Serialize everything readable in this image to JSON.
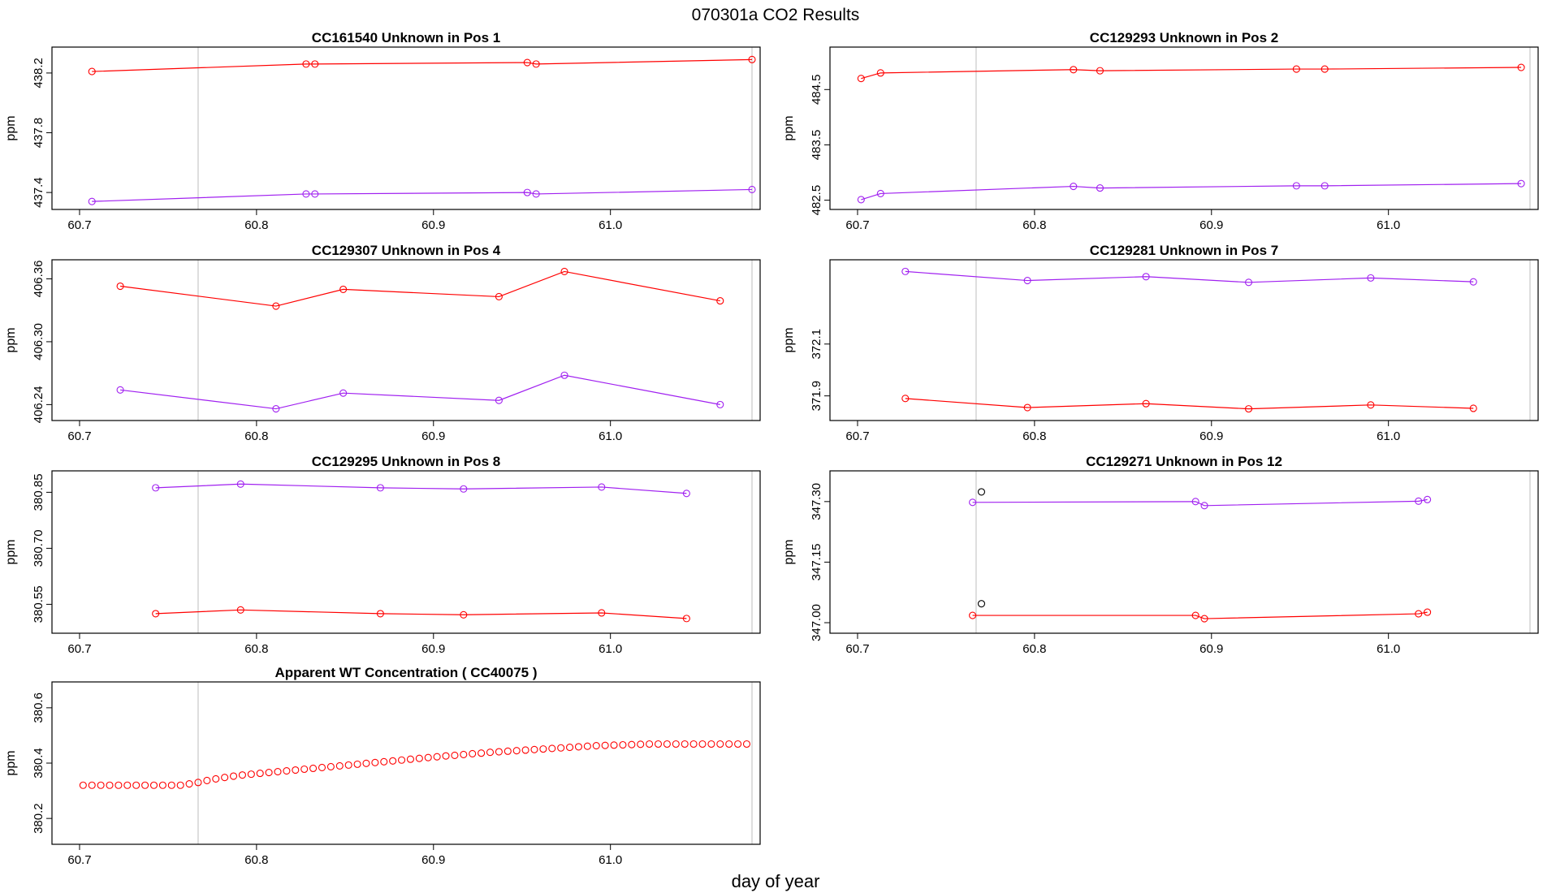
{
  "title": "070301a  CO2 Results",
  "xlabel": "day of year",
  "colors": {
    "red": "#ff0000",
    "purple": "#a020f0",
    "black": "#000000",
    "vline": "#bebebe"
  },
  "chart_data": [
    {
      "type": "line",
      "title": "CC161540    Unknown in Pos 1",
      "ylabel": "ppm",
      "xlim": [
        60.689,
        61.08
      ],
      "ylim": [
        437.33,
        438.33
      ],
      "xticks": [
        "60.7",
        "60.8",
        "60.9",
        "61.0"
      ],
      "yticks": [
        "437.4",
        "437.8",
        "438.2"
      ],
      "vlines": [
        60.767,
        61.08
      ],
      "series": [
        {
          "name": "red",
          "color": "#ff0000",
          "x": [
            60.707,
            60.828,
            60.833,
            60.953,
            60.958,
            61.08
          ],
          "y": [
            438.21,
            438.26,
            438.26,
            438.27,
            438.26,
            438.29
          ]
        },
        {
          "name": "purple",
          "color": "#a020f0",
          "x": [
            60.707,
            60.828,
            60.833,
            60.953,
            60.958,
            61.08
          ],
          "y": [
            437.34,
            437.39,
            437.39,
            437.4,
            437.39,
            437.42
          ]
        }
      ]
    },
    {
      "type": "line",
      "title": "CC129293    Unknown in Pos 2",
      "ylabel": "ppm",
      "xlim": [
        60.689,
        61.08
      ],
      "ylim": [
        482.45,
        485.15
      ],
      "xticks": [
        "60.7",
        "60.8",
        "60.9",
        "61.0"
      ],
      "yticks": [
        "482.5",
        "483.5",
        "484.5"
      ],
      "vlines": [
        60.767,
        61.08
      ],
      "series": [
        {
          "name": "red",
          "color": "#ff0000",
          "x": [
            60.702,
            60.713,
            60.822,
            60.837,
            60.948,
            60.964,
            61.075
          ],
          "y": [
            484.7,
            484.8,
            484.86,
            484.84,
            484.87,
            484.87,
            484.9
          ]
        },
        {
          "name": "purple",
          "color": "#a020f0",
          "x": [
            60.702,
            60.713,
            60.822,
            60.837,
            60.948,
            60.964,
            61.075
          ],
          "y": [
            482.51,
            482.62,
            482.75,
            482.72,
            482.76,
            482.76,
            482.8
          ]
        }
      ]
    },
    {
      "type": "line",
      "title": "CC129307    Unknown in Pos 4",
      "ylabel": "ppm",
      "xlim": [
        60.689,
        61.08
      ],
      "ylim": [
        406.231,
        406.372
      ],
      "xticks": [
        "60.7",
        "60.8",
        "60.9",
        "61.0"
      ],
      "yticks": [
        "406.24",
        "406.30",
        "406.36"
      ],
      "vlines": [
        60.767,
        61.08
      ],
      "series": [
        {
          "name": "red",
          "color": "#ff0000",
          "x": [
            60.723,
            60.811,
            60.849,
            60.937,
            60.974,
            61.062
          ],
          "y": [
            406.353,
            406.334,
            406.35,
            406.343,
            406.367,
            406.339
          ]
        },
        {
          "name": "purple",
          "color": "#a020f0",
          "x": [
            60.723,
            60.811,
            60.849,
            60.937,
            60.974,
            61.062
          ],
          "y": [
            406.254,
            406.236,
            406.251,
            406.244,
            406.268,
            406.24
          ]
        }
      ]
    },
    {
      "type": "line",
      "title": "CC129281    Unknown in Pos 7",
      "ylabel": "ppm",
      "xlim": [
        60.689,
        61.08
      ],
      "ylim": [
        371.83,
        372.4
      ],
      "xticks": [
        "60.7",
        "60.8",
        "60.9",
        "61.0"
      ],
      "yticks": [
        "371.9",
        "372.1"
      ],
      "vlines": [
        60.767,
        61.08
      ],
      "series": [
        {
          "name": "red",
          "color": "#ff0000",
          "x": [
            60.727,
            60.796,
            60.863,
            60.921,
            60.99,
            61.048
          ],
          "y": [
            371.89,
            371.855,
            371.87,
            371.85,
            371.865,
            371.852
          ]
        },
        {
          "name": "purple",
          "color": "#a020f0",
          "x": [
            60.727,
            60.796,
            60.863,
            60.921,
            60.99,
            61.048
          ],
          "y": [
            372.38,
            372.345,
            372.36,
            372.338,
            372.355,
            372.34
          ]
        }
      ]
    },
    {
      "type": "line",
      "title": "CC129295    Unknown in Pos 8",
      "ylabel": "ppm",
      "xlim": [
        60.689,
        61.08
      ],
      "ylim": [
        380.49,
        380.89
      ],
      "xticks": [
        "60.7",
        "60.8",
        "60.9",
        "61.0"
      ],
      "yticks": [
        "380.55",
        "380.70",
        "380.85"
      ],
      "vlines": [
        60.767,
        61.08
      ],
      "series": [
        {
          "name": "red",
          "color": "#ff0000",
          "x": [
            60.743,
            60.791,
            60.87,
            60.917,
            60.995,
            61.043
          ],
          "y": [
            380.525,
            380.535,
            380.525,
            380.522,
            380.527,
            380.512
          ]
        },
        {
          "name": "purple",
          "color": "#a020f0",
          "x": [
            60.743,
            60.791,
            60.87,
            60.917,
            60.995,
            61.043
          ],
          "y": [
            380.862,
            380.872,
            380.862,
            380.859,
            380.864,
            380.847
          ]
        }
      ]
    },
    {
      "type": "line",
      "title": "CC129271    Unknown in Pos 12",
      "ylabel": "ppm",
      "xlim": [
        60.689,
        61.08
      ],
      "ylim": [
        346.99,
        347.36
      ],
      "xticks": [
        "60.7",
        "60.8",
        "60.9",
        "61.0"
      ],
      "yticks": [
        "347.00",
        "347.15",
        "347.30"
      ],
      "vlines": [
        60.767,
        61.08
      ],
      "series": [
        {
          "name": "red",
          "color": "#ff0000",
          "x": [
            60.765,
            60.891,
            60.896,
            61.017,
            61.022
          ],
          "y": [
            347.018,
            347.018,
            347.01,
            347.022,
            347.026
          ]
        },
        {
          "name": "purple",
          "color": "#a020f0",
          "x": [
            60.765,
            60.891,
            60.896,
            61.017,
            61.022
          ],
          "y": [
            347.298,
            347.3,
            347.29,
            347.301,
            347.305
          ]
        },
        {
          "name": "black",
          "color": "#000000",
          "points_only": true,
          "x": [
            60.77,
            60.77
          ],
          "y": [
            347.047,
            347.324
          ]
        }
      ]
    },
    {
      "type": "scatter",
      "title": "Apparent WT Concentration ( CC40075 )",
      "ylabel": "ppm",
      "xlim": [
        60.689,
        61.08
      ],
      "ylim": [
        380.13,
        380.67
      ],
      "xticks": [
        "60.7",
        "60.8",
        "60.9",
        "61.0"
      ],
      "yticks": [
        "380.2",
        "380.4",
        "380.6"
      ],
      "vlines": [
        60.767,
        61.08
      ],
      "series": [
        {
          "name": "red",
          "color": "#ff0000",
          "points_only": true,
          "x": [
            60.702,
            60.707,
            60.712,
            60.717,
            60.722,
            60.727,
            60.732,
            60.737,
            60.742,
            60.747,
            60.752,
            60.757,
            60.762,
            60.767,
            60.772,
            60.777,
            60.782,
            60.787,
            60.792,
            60.797,
            60.802,
            60.807,
            60.812,
            60.817,
            60.822,
            60.827,
            60.832,
            60.837,
            60.842,
            60.847,
            60.852,
            60.857,
            60.862,
            60.867,
            60.872,
            60.877,
            60.882,
            60.887,
            60.892,
            60.897,
            60.902,
            60.907,
            60.912,
            60.917,
            60.922,
            60.927,
            60.932,
            60.937,
            60.942,
            60.947,
            60.952,
            60.957,
            60.962,
            60.967,
            60.972,
            60.977,
            60.982,
            60.987,
            60.992,
            60.997,
            61.002,
            61.007,
            61.012,
            61.017,
            61.022,
            61.027,
            61.032,
            61.037,
            61.042,
            61.047,
            61.052,
            61.057,
            61.062,
            61.067,
            61.072,
            61.077
          ],
          "y": [
            380.32,
            380.32,
            380.32,
            380.32,
            380.32,
            380.32,
            380.32,
            380.32,
            380.32,
            380.32,
            380.32,
            380.32,
            380.325,
            380.33,
            380.337,
            380.343,
            380.348,
            380.353,
            380.357,
            380.36,
            380.363,
            380.366,
            380.369,
            380.372,
            380.375,
            380.378,
            380.381,
            380.384,
            380.387,
            380.39,
            380.393,
            380.396,
            380.399,
            380.402,
            380.405,
            380.408,
            380.411,
            380.414,
            380.417,
            380.42,
            380.423,
            380.426,
            380.428,
            380.431,
            380.434,
            380.436,
            380.439,
            380.441,
            380.443,
            380.445,
            380.447,
            380.449,
            380.451,
            380.453,
            380.455,
            380.457,
            380.459,
            380.461,
            380.463,
            380.464,
            380.465,
            380.466,
            380.467,
            380.468,
            380.469,
            380.469,
            380.469,
            380.469,
            380.469,
            380.469,
            380.469,
            380.469,
            380.469,
            380.469,
            380.469,
            380.469
          ]
        }
      ]
    }
  ]
}
